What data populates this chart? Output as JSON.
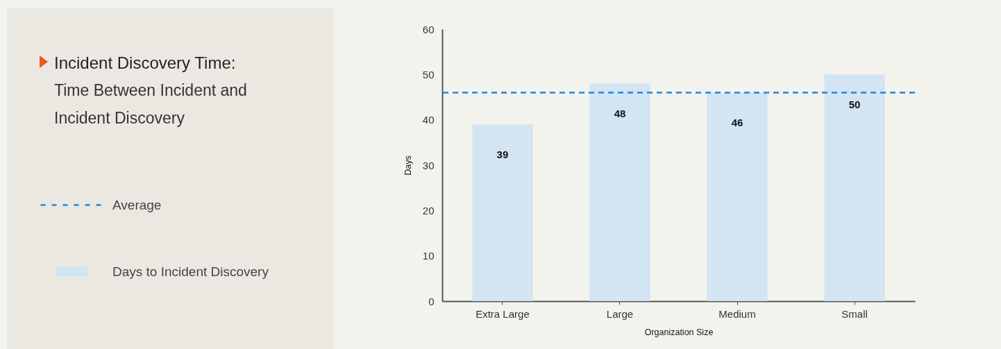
{
  "chart_data": {
    "type": "bar",
    "title": "Incident Discovery Time:",
    "subtitle": "Time Between Incident and Incident Discovery",
    "xlabel": "Organization Size",
    "ylabel": "Days",
    "categories": [
      "Extra Large",
      "Large",
      "Medium",
      "Small"
    ],
    "series": [
      {
        "name": "Days to Incident Discovery",
        "color": "#d3e4f3",
        "values": [
          39,
          48,
          46,
          50
        ]
      }
    ],
    "ylim": [
      0,
      60
    ],
    "yticks": [
      0,
      10,
      20,
      30,
      40,
      50,
      60
    ],
    "ref_lines": [
      {
        "axis": "y",
        "value": 46,
        "label": "Average",
        "color": "#1a86e8",
        "line_style": "dashed"
      }
    ],
    "data_labels": true,
    "grid": false,
    "legend": "left"
  }
}
